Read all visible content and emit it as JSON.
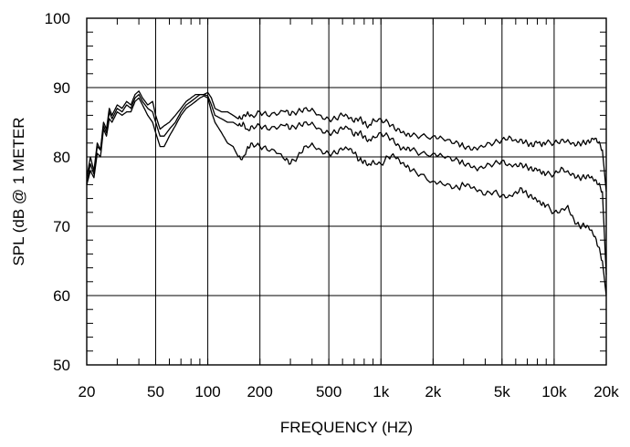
{
  "chart_data": {
    "type": "line",
    "title": "",
    "xlabel": "FREQUENCY  (HZ)",
    "ylabel": "SPL (dB @ 1 METER",
    "x_scale": "log",
    "xlim": [
      20,
      20000
    ],
    "ylim": [
      50,
      100
    ],
    "grid": true,
    "x_ticks": [
      {
        "value": 20,
        "label": "20"
      },
      {
        "value": 50,
        "label": "50"
      },
      {
        "value": 100,
        "label": "100"
      },
      {
        "value": 200,
        "label": "200"
      },
      {
        "value": 500,
        "label": "500"
      },
      {
        "value": 1000,
        "label": "1k"
      },
      {
        "value": 2000,
        "label": "2k"
      },
      {
        "value": 5000,
        "label": "5k"
      },
      {
        "value": 10000,
        "label": "10k"
      },
      {
        "value": 20000,
        "label": "20k"
      }
    ],
    "y_ticks": [
      {
        "value": 50,
        "label": "50"
      },
      {
        "value": 60,
        "label": "60"
      },
      {
        "value": 70,
        "label": "70"
      },
      {
        "value": 80,
        "label": "80"
      },
      {
        "value": 90,
        "label": "90"
      },
      {
        "value": 100,
        "label": "100"
      }
    ],
    "series": [
      {
        "x": [
          20,
          21,
          22,
          23,
          24,
          25,
          26,
          27,
          28,
          30,
          32,
          34,
          36,
          38,
          40,
          42,
          45,
          48,
          50,
          53,
          56,
          60,
          65,
          70,
          75,
          80,
          85,
          90,
          95,
          100,
          105,
          110,
          120,
          130,
          140,
          150,
          160,
          170,
          180,
          200,
          220,
          250,
          280,
          300,
          330,
          360,
          400,
          450,
          500,
          550,
          600,
          650,
          700,
          750,
          800,
          850,
          900,
          1000,
          1100,
          1200,
          1300,
          1400,
          1500,
          1700,
          2000,
          2200,
          2500,
          2800,
          3000,
          3300,
          3600,
          4000,
          4500,
          5000,
          5500,
          6000,
          6500,
          7000,
          7500,
          8000,
          8500,
          9000,
          10000,
          11000,
          12000,
          13000,
          14000,
          15000,
          16000,
          17000,
          18000,
          19000,
          20000
        ],
        "y": [
          77,
          80,
          78,
          82,
          81,
          85,
          84,
          87,
          86,
          87.5,
          87,
          88,
          87.5,
          89,
          89.5,
          88.5,
          87.5,
          88,
          86,
          84,
          84.5,
          85,
          86,
          87,
          88,
          88.5,
          89,
          89,
          89,
          89.3,
          88.5,
          87,
          86.5,
          86.5,
          86,
          85.5,
          86,
          86.5,
          86,
          86.5,
          86,
          86,
          86.5,
          86,
          86.5,
          87,
          87,
          86,
          85.5,
          85.5,
          86,
          85.5,
          85,
          85.5,
          85,
          84.5,
          85.5,
          85.5,
          85,
          84,
          83.5,
          83,
          83,
          83,
          83,
          83,
          82.5,
          82,
          81.5,
          81,
          81,
          81.5,
          82,
          82.5,
          83,
          82.5,
          82.5,
          82,
          81.5,
          82,
          81.5,
          82,
          82,
          82.5,
          82.5,
          82,
          82,
          82,
          82,
          82.5,
          82,
          81,
          75
        ]
      },
      {
        "x": [
          20,
          21,
          22,
          23,
          24,
          25,
          26,
          27,
          28,
          30,
          32,
          34,
          36,
          38,
          40,
          42,
          45,
          48,
          50,
          53,
          56,
          60,
          65,
          70,
          75,
          80,
          85,
          90,
          95,
          100,
          105,
          110,
          120,
          130,
          140,
          150,
          160,
          170,
          180,
          200,
          220,
          250,
          280,
          300,
          330,
          360,
          400,
          450,
          500,
          550,
          600,
          650,
          700,
          750,
          800,
          850,
          900,
          1000,
          1100,
          1200,
          1300,
          1400,
          1500,
          1700,
          2000,
          2200,
          2500,
          2800,
          3000,
          3300,
          3600,
          4000,
          4500,
          5000,
          5500,
          6000,
          6500,
          7000,
          7500,
          8000,
          8500,
          9000,
          10000,
          11000,
          12000,
          13000,
          14000,
          15000,
          16000,
          17000,
          18000,
          19000,
          20000
        ],
        "y": [
          76,
          79,
          77.5,
          81.5,
          81,
          84.5,
          83.5,
          86.5,
          85.5,
          87,
          86.5,
          87.5,
          87,
          88.5,
          89,
          88,
          87,
          86.5,
          85,
          83,
          83,
          84,
          85,
          86.5,
          87.5,
          88,
          88.5,
          89,
          89,
          88.8,
          87.5,
          86,
          85.5,
          85,
          85,
          84.5,
          85,
          84,
          84.5,
          84.5,
          84,
          84,
          84.5,
          84,
          84.5,
          85,
          85,
          84,
          83.5,
          83.5,
          84,
          84,
          83,
          83.5,
          83,
          82.5,
          83,
          83.5,
          83,
          82,
          81,
          81,
          81,
          80.5,
          80.5,
          80.5,
          80,
          79.5,
          79,
          78.5,
          78,
          78.5,
          79,
          79.5,
          79,
          79,
          79,
          78.5,
          78,
          78,
          77.5,
          77.5,
          77.5,
          78.5,
          78,
          77.5,
          77,
          77,
          77,
          76.5,
          76,
          75,
          63
        ]
      },
      {
        "x": [
          20,
          21,
          22,
          23,
          24,
          25,
          26,
          27,
          28,
          30,
          32,
          34,
          36,
          38,
          40,
          42,
          45,
          48,
          50,
          53,
          56,
          60,
          65,
          70,
          75,
          80,
          85,
          90,
          95,
          100,
          105,
          110,
          120,
          130,
          140,
          150,
          160,
          170,
          180,
          200,
          220,
          250,
          280,
          300,
          330,
          360,
          400,
          450,
          500,
          550,
          600,
          650,
          700,
          750,
          800,
          850,
          900,
          1000,
          1100,
          1200,
          1300,
          1400,
          1500,
          1700,
          2000,
          2200,
          2500,
          2800,
          3000,
          3300,
          3600,
          4000,
          4500,
          5000,
          5500,
          6000,
          6500,
          7000,
          7500,
          8000,
          8500,
          9000,
          10000,
          11000,
          12000,
          13000,
          14000,
          15000,
          16000,
          17000,
          18000,
          19000,
          20000
        ],
        "y": [
          76,
          78,
          77,
          80.5,
          80,
          84,
          83,
          85.5,
          85,
          86.5,
          86,
          86.5,
          86.5,
          88,
          88.5,
          87.5,
          86,
          85,
          83.5,
          81.5,
          81.5,
          83,
          84.5,
          86,
          87,
          87.5,
          88,
          88.5,
          88.8,
          88.5,
          86.5,
          85,
          83.5,
          82,
          81.5,
          80,
          80,
          81.5,
          82,
          81.5,
          81,
          80.5,
          79.5,
          79,
          80,
          81.5,
          82,
          81,
          80.5,
          80.5,
          81,
          81,
          80.5,
          79.5,
          79.5,
          79,
          79.5,
          79,
          80,
          80,
          79,
          78.5,
          78,
          77.5,
          76.5,
          76.5,
          76,
          75.5,
          76,
          75.5,
          75,
          74.5,
          75,
          74.5,
          74.5,
          75,
          75.5,
          74.5,
          74,
          73.5,
          73,
          73,
          72,
          72.5,
          73,
          71,
          70,
          70,
          69.5,
          68.5,
          67,
          65,
          60
        ]
      }
    ]
  }
}
